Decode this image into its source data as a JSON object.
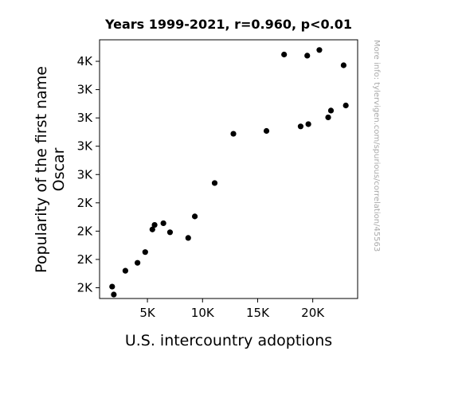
{
  "chart_data": {
    "type": "scatter",
    "title": "Years 1999-2021, r=0.960, p<0.01",
    "xlabel": "U.S. intercountry adoptions",
    "ylabel_lines": [
      "Popularity of the first name",
      "Oscar"
    ],
    "watermark": "More info: tylervigen.com/spurious/correlation/45563",
    "xlim": [
      658,
      24072
    ],
    "ylim": [
      1405,
      3690
    ],
    "xticks": [
      {
        "value": 5000,
        "label": "5K"
      },
      {
        "value": 10000,
        "label": "10K"
      },
      {
        "value": 15000,
        "label": "15K"
      },
      {
        "value": 20000,
        "label": "20K"
      }
    ],
    "yticks": [
      {
        "value": 1500,
        "label": "2K"
      },
      {
        "value": 1750,
        "label": "2K"
      },
      {
        "value": 2000,
        "label": "2K"
      },
      {
        "value": 2250,
        "label": "2K"
      },
      {
        "value": 2500,
        "label": "3K"
      },
      {
        "value": 2750,
        "label": "3K"
      },
      {
        "value": 3000,
        "label": "3K"
      },
      {
        "value": 3250,
        "label": "3K"
      },
      {
        "value": 3500,
        "label": "4K"
      }
    ],
    "marker_color": "#000000",
    "grid": false,
    "points": [
      {
        "x": 1800,
        "y": 1510
      },
      {
        "x": 1950,
        "y": 1440
      },
      {
        "x": 3000,
        "y": 1650
      },
      {
        "x": 4100,
        "y": 1720
      },
      {
        "x": 4800,
        "y": 1815
      },
      {
        "x": 5450,
        "y": 2015
      },
      {
        "x": 5650,
        "y": 2055
      },
      {
        "x": 6450,
        "y": 2070
      },
      {
        "x": 7050,
        "y": 1990
      },
      {
        "x": 8700,
        "y": 1940
      },
      {
        "x": 9300,
        "y": 2130
      },
      {
        "x": 11100,
        "y": 2425
      },
      {
        "x": 12800,
        "y": 2860
      },
      {
        "x": 15800,
        "y": 2885
      },
      {
        "x": 17400,
        "y": 3560
      },
      {
        "x": 18900,
        "y": 2925
      },
      {
        "x": 19500,
        "y": 3550
      },
      {
        "x": 19600,
        "y": 2945
      },
      {
        "x": 20600,
        "y": 3600
      },
      {
        "x": 21400,
        "y": 3005
      },
      {
        "x": 21650,
        "y": 3065
      },
      {
        "x": 22800,
        "y": 3465
      },
      {
        "x": 23000,
        "y": 3110
      }
    ]
  }
}
